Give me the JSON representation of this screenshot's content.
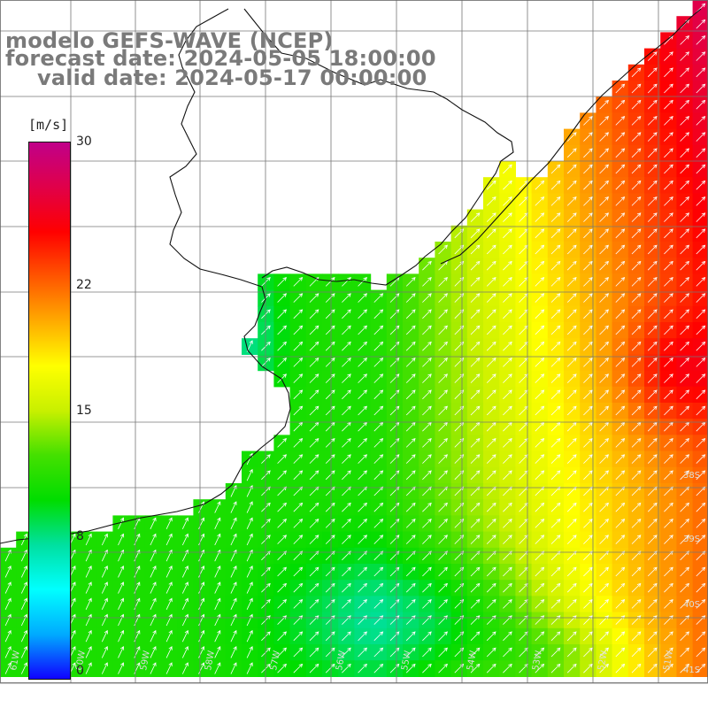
{
  "title": {
    "model": "modelo GEFS-WAVE (NCEP)",
    "forecast": "forecast date: 2024-05-05 18:00:00",
    "valid": "valid date: 2024-05-17 00:00:00"
  },
  "colorbar": {
    "unit": "[m/s]",
    "ticks": [
      "30",
      "22",
      "15",
      "8",
      "0"
    ],
    "tick_values": [
      30,
      22,
      15,
      8,
      0
    ],
    "colors": [
      "#1000ff",
      "#00aaff",
      "#00ffff",
      "#00e0a0",
      "#00dd00",
      "#44e000",
      "#c8f000",
      "#ffff00",
      "#ffaa00",
      "#ff5500",
      "#ff0000",
      "#e0004a",
      "#c0008a"
    ]
  },
  "lat_labels": [
    "38S",
    "39S",
    "40S",
    "41S"
  ],
  "lon_labels": [
    "61W",
    "60W",
    "59W",
    "58W",
    "57W",
    "56W",
    "55W",
    "54W",
    "53W",
    "52W",
    "51W"
  ],
  "chart_data": {
    "type": "heatmap",
    "variable": "wind speed",
    "unit": "m/s",
    "range": [
      0,
      30
    ],
    "field_description_keypoints": [
      {
        "region": "south-west coast",
        "speed": 11
      },
      {
        "region": "river plate estuary",
        "speed": 12
      },
      {
        "region": "south-central",
        "speed": 9
      },
      {
        "region": "east offshore",
        "speed": 22
      },
      {
        "region": "north-east shelf",
        "speed": 19
      }
    ],
    "wind_direction": "north-east arrows"
  }
}
